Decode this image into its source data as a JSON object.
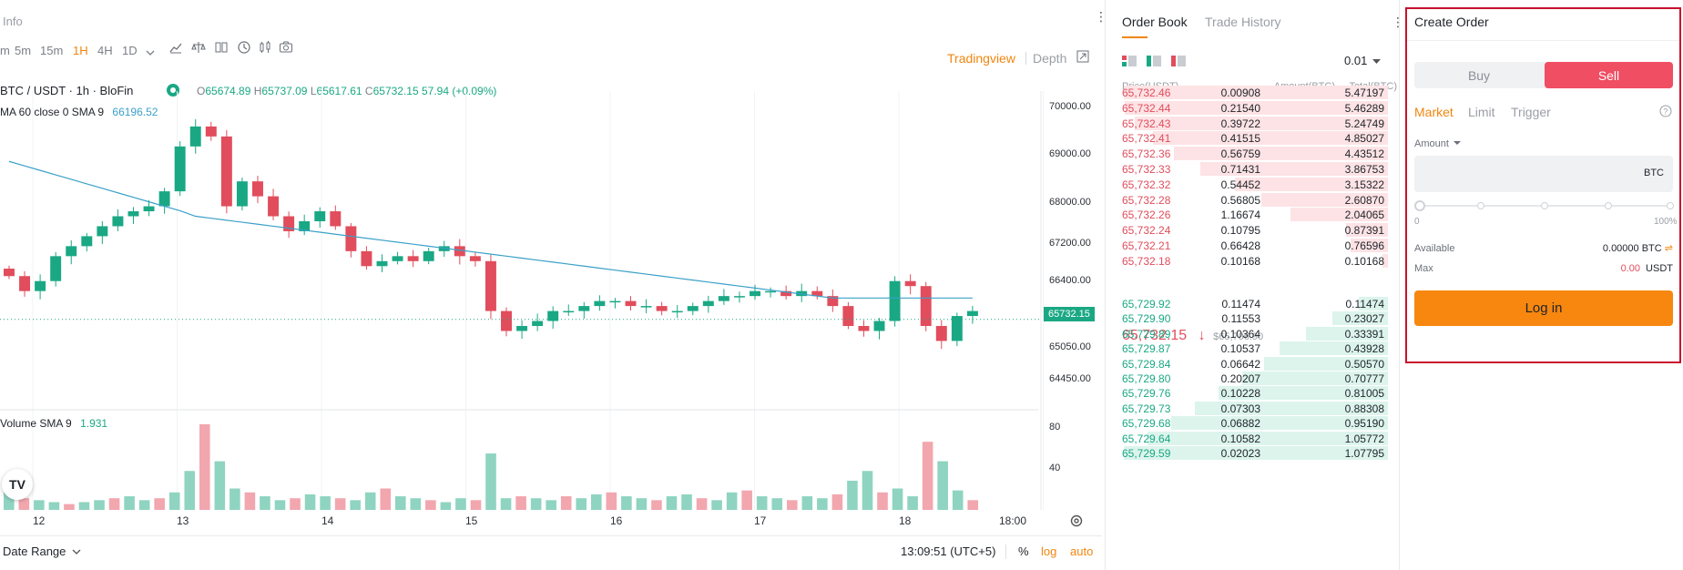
{
  "chart_header": {
    "info_label": "Info",
    "timeframes": [
      "m",
      "5m",
      "15m",
      "1H",
      "4H",
      "1D"
    ],
    "active_timeframe": "1H",
    "view_tradingview": "Tradingview",
    "view_depth": "Depth"
  },
  "legend": {
    "symbol": "BTC / USDT · 1h · BloFin",
    "open_label": "O",
    "open": "65674.89",
    "high_label": "H",
    "high": "65737.09",
    "low_label": "L",
    "low": "65617.61",
    "close_label": "C",
    "close": "65732.15",
    "change": "57.94 (+0.09%)",
    "ma_label": "MA 60 close 0 SMA 9",
    "ma_value": "66196.52",
    "volume_label": "Volume SMA 9",
    "volume_value": "1.931"
  },
  "price_axis": [
    "70000.00",
    "69000.00",
    "68000.00",
    "67200.00",
    "66400.00",
    "65050.00",
    "64450.00"
  ],
  "current_price_tag": "65732.15",
  "volume_axis": [
    "80",
    "40"
  ],
  "time_axis": [
    "12",
    "13",
    "14",
    "15",
    "16",
    "17",
    "18",
    "18:00"
  ],
  "bottom_bar": {
    "date_range": "Date Range",
    "time": "13:09:51 (UTC+5)",
    "percent": "%",
    "log": "log",
    "auto": "auto"
  },
  "colors": {
    "up": "#1aa884",
    "down": "#e14d5c",
    "accent": "#f0860f",
    "ma_line": "#3aa0c8",
    "sell": "#f04e63",
    "login": "#f7870f"
  },
  "chart_data": {
    "type": "candlestick",
    "x": [
      "12",
      "13",
      "14",
      "15",
      "16",
      "17",
      "18",
      "18:00"
    ],
    "y_axis_ticks": [
      70000,
      69000,
      68000,
      67200,
      66400,
      65050,
      64450
    ],
    "last_price": 65732.15,
    "ma_series_name": "MA 60 close 0 SMA 9",
    "ma_last": 66196.52,
    "close_path": [
      66600,
      66300,
      66500,
      67000,
      67200,
      67400,
      67600,
      67800,
      67900,
      68000,
      68300,
      69200,
      69600,
      69400,
      68000,
      68500,
      68200,
      67800,
      67500,
      67700,
      67900,
      67600,
      67100,
      66800,
      66900,
      67000,
      66900,
      67100,
      67200,
      67000,
      66900,
      65900,
      65500,
      65600,
      65700,
      65900,
      65900,
      66000,
      66100,
      66100,
      66000,
      66000,
      65900,
      65900,
      66000,
      66100,
      66200,
      66200,
      66300,
      66300,
      66200,
      66300,
      66200,
      66000,
      65600,
      65500,
      65700,
      66500,
      66400,
      65600,
      65300,
      65800,
      65900
    ],
    "volume_path": [
      30,
      12,
      10,
      8,
      6,
      8,
      10,
      12,
      14,
      10,
      12,
      18,
      40,
      88,
      50,
      22,
      18,
      14,
      10,
      12,
      16,
      14,
      12,
      10,
      18,
      22,
      14,
      12,
      10,
      8,
      12,
      10,
      58,
      12,
      14,
      12,
      10,
      14,
      12,
      16,
      18,
      14,
      12,
      10,
      14,
      16,
      12,
      10,
      18,
      20,
      14,
      12,
      10,
      14,
      12,
      16,
      30,
      40,
      18,
      22,
      14,
      70,
      50,
      20,
      10
    ],
    "volume_ticks": [
      80,
      40
    ]
  },
  "order_book": {
    "tab_book": "Order Book",
    "tab_history": "Trade History",
    "precision": "0.01",
    "headers": [
      "Price(USDT)",
      "Amount(BTC)",
      "Total(BTC)"
    ],
    "asks": [
      {
        "price": "65,732.46",
        "amount": "0.00908",
        "total": "5.47197",
        "depth": 1.0
      },
      {
        "price": "65,732.44",
        "amount": "0.21540",
        "total": "5.46289",
        "depth": 0.998
      },
      {
        "price": "65,732.43",
        "amount": "0.39722",
        "total": "5.24749",
        "depth": 0.96
      },
      {
        "price": "65,732.41",
        "amount": "0.41515",
        "total": "4.85027",
        "depth": 0.89
      },
      {
        "price": "65,732.36",
        "amount": "0.56759",
        "total": "4.43512",
        "depth": 0.81
      },
      {
        "price": "65,732.33",
        "amount": "0.71431",
        "total": "3.86753",
        "depth": 0.71
      },
      {
        "price": "65,732.32",
        "amount": "0.54452",
        "total": "3.15322",
        "depth": 0.58
      },
      {
        "price": "65,732.28",
        "amount": "0.56805",
        "total": "2.60870",
        "depth": 0.48
      },
      {
        "price": "65,732.26",
        "amount": "1.16674",
        "total": "2.04065",
        "depth": 0.37
      },
      {
        "price": "65,732.24",
        "amount": "0.10795",
        "total": "0.87391",
        "depth": 0.16
      },
      {
        "price": "65,732.21",
        "amount": "0.66428",
        "total": "0.76596",
        "depth": 0.14
      },
      {
        "price": "65,732.18",
        "amount": "0.10168",
        "total": "0.10168",
        "depth": 0.02
      }
    ],
    "mid_price": "65,732.15",
    "mid_arrow": "↓",
    "mid_index": "$65,706.90",
    "bids": [
      {
        "price": "65,729.92",
        "amount": "0.11474",
        "total": "0.11474",
        "depth": 0.11
      },
      {
        "price": "65,729.90",
        "amount": "0.11553",
        "total": "0.23027",
        "depth": 0.21
      },
      {
        "price": "65,729.89",
        "amount": "0.10364",
        "total": "0.33391",
        "depth": 0.31
      },
      {
        "price": "65,729.87",
        "amount": "0.10537",
        "total": "0.43928",
        "depth": 0.41
      },
      {
        "price": "65,729.84",
        "amount": "0.06642",
        "total": "0.50570",
        "depth": 0.47
      },
      {
        "price": "65,729.80",
        "amount": "0.20207",
        "total": "0.70777",
        "depth": 0.55
      },
      {
        "price": "65,729.76",
        "amount": "0.10228",
        "total": "0.81005",
        "depth": 0.64
      },
      {
        "price": "65,729.73",
        "amount": "0.07303",
        "total": "0.88308",
        "depth": 0.73
      },
      {
        "price": "65,729.68",
        "amount": "0.06882",
        "total": "0.95190",
        "depth": 0.82
      },
      {
        "price": "65,729.64",
        "amount": "0.10582",
        "total": "1.05772",
        "depth": 0.91
      },
      {
        "price": "65,729.59",
        "amount": "0.02023",
        "total": "1.07795",
        "depth": 1.0
      }
    ]
  },
  "create_order": {
    "title": "Create Order",
    "buy": "Buy",
    "sell": "Sell",
    "order_types": [
      "Market",
      "Limit",
      "Trigger"
    ],
    "active_type": "Market",
    "amount_label": "Amount",
    "amount_unit": "BTC",
    "amount_value": "",
    "slider_min": "0",
    "slider_max": "100%",
    "available_label": "Available",
    "available_value": "0.00000 BTC",
    "max_label": "Max",
    "max_value": "0.00",
    "max_unit": "USDT",
    "login": "Log in"
  }
}
